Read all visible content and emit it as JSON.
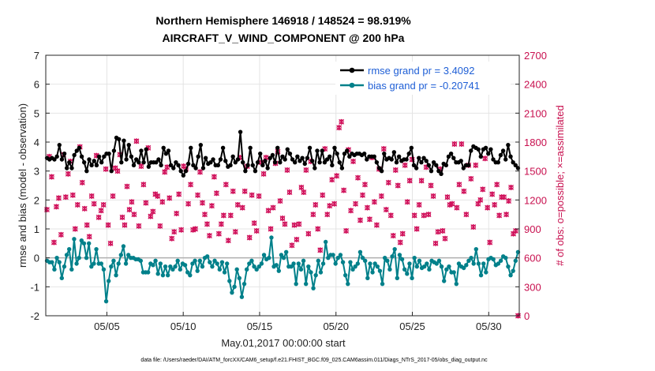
{
  "chart_data": {
    "type": "line",
    "title": "Northern Hemisphere 146918 / 148524 = 98.919%",
    "subtitle": "AIRCRAFT_V_WIND_COMPONENT @ 200 hPa",
    "xlabel": "May.01,2017 00:00:00 start",
    "ylabel": "rmse and bias (model - observation)",
    "ylabel_right": "# of obs: o=possible; ×=assimilated",
    "footer": "data file: /Users/raeder/DAI/ATM_forcXX/CAM6_setup/f.e21.FHIST_BGC.f09_025.CAM6assim.011/Diags_NTrS_2017-05/obs_diag_output.nc",
    "xlim": [
      1,
      32
    ],
    "ylim": [
      -2,
      7
    ],
    "ylim_right": [
      0,
      2700
    ],
    "grid": true,
    "legend_position": "top-right",
    "x_ticks": [
      5,
      10,
      15,
      20,
      25,
      30
    ],
    "x_tick_labels": [
      "05/05",
      "05/10",
      "05/15",
      "05/20",
      "05/25",
      "05/30"
    ],
    "y_ticks": [
      "-2",
      "-1",
      "0",
      "1",
      "2",
      "3",
      "4",
      "5",
      "6",
      "7"
    ],
    "y_ticks_right": [
      "0",
      "300",
      "600",
      "900",
      "1200",
      "1500",
      "1800",
      "2100",
      "2400",
      "2700"
    ],
    "legend": [
      {
        "label": "rmse grand pr = 3.4092",
        "color": "#000000"
      },
      {
        "label": "bias grand pr = -0.20741",
        "color": "#00808a"
      }
    ],
    "series": [
      {
        "name": "rmse",
        "color": "#000000",
        "values": [
          3.45,
          3.4,
          3.45,
          3.4,
          3.5,
          3.9,
          3.4,
          3.6,
          3.1,
          3.3,
          3.1,
          3.55,
          3.7,
          3.8,
          3.5,
          3.3,
          3.0,
          3.4,
          3.2,
          3.35,
          3.2,
          3.5,
          3.3,
          3.5,
          3.6,
          3.6,
          3.0,
          3.7,
          4.15,
          4.1,
          3.3,
          4.05,
          3.4,
          3.9,
          3.5,
          3.2,
          3.4,
          3.3,
          3.7,
          3.3,
          3.75,
          3.15,
          3.3,
          3.3,
          3.3,
          3.4,
          3.2,
          3.8,
          3.6,
          3.7,
          3.2,
          3.1,
          3.3,
          3.2,
          3.0,
          2.85,
          3.0,
          3.25,
          3.8,
          3.2,
          3.1,
          3.5,
          3.9,
          3.1,
          3.45,
          3.25,
          3.3,
          3.4,
          3.2,
          3.2,
          3.4,
          3.8,
          3.35,
          3.15,
          3.2,
          3.5,
          3.3,
          3.4,
          4.35,
          3.3,
          3.0,
          3.2,
          3.8,
          3.2,
          3.0,
          3.3,
          3.6,
          3.2,
          3.35,
          3.1,
          3.45,
          3.55,
          3.3,
          3.8,
          3.3,
          3.5,
          3.4,
          3.75,
          3.6,
          3.4,
          3.3,
          3.5,
          3.35,
          3.45,
          3.25,
          3.45,
          3.8,
          3.35,
          3.1,
          3.7,
          3.3,
          3.7,
          3.3,
          3.4,
          3.5,
          3.2,
          3.8,
          3.6,
          3.3,
          3.1,
          3.6,
          3.7,
          3.5,
          3.6,
          3.55,
          3.6,
          3.6,
          3.55,
          3.6,
          3.4,
          3.5,
          3.5,
          3.5,
          3.3,
          3.1,
          3.0,
          3.6,
          3.4,
          3.45,
          3.4,
          3.65,
          3.3,
          3.5,
          3.35,
          3.4,
          3.4,
          3.6,
          3.8,
          3.2,
          3.1,
          3.45,
          3.3,
          3.45,
          3.35,
          3.2,
          3.0,
          3.3,
          3.2,
          3.0,
          2.9,
          3.25,
          3.2,
          3.5,
          3.6,
          3.45,
          3.3,
          3.3,
          3.35,
          3.1,
          3.2,
          3.2,
          3.7,
          3.85,
          3.8,
          3.75,
          3.5,
          3.75,
          3.8,
          3.6,
          3.75,
          3.4,
          3.3,
          3.3,
          3.55,
          3.7,
          3.4,
          3.9,
          3.5,
          3.3,
          3.2,
          3.1
        ]
      },
      {
        "name": "bias",
        "color": "#00808a",
        "values": [
          -0.1,
          -0.15,
          -0.15,
          -0.4,
          0.0,
          -0.15,
          -0.7,
          -0.3,
          0.1,
          0.3,
          -0.4,
          0.65,
          -0.2,
          0.0,
          0.6,
          0.5,
          0.0,
          0.5,
          -0.3,
          -0.2,
          0.3,
          -0.2,
          -0.2,
          -0.4,
          -1.5,
          -0.8,
          -0.3,
          -0.1,
          -0.6,
          -0.2,
          0.1,
          0.4,
          -0.2,
          0.1,
          0.0,
          0.0,
          -0.05,
          -0.05,
          -0.1,
          -0.5,
          -0.5,
          -0.5,
          -0.2,
          -0.25,
          -0.1,
          -0.55,
          -0.2,
          -0.6,
          -0.3,
          -0.6,
          -0.3,
          -0.4,
          -0.3,
          -0.1,
          -0.4,
          -0.2,
          -0.25,
          -0.5,
          -0.6,
          -0.2,
          -0.1,
          -0.45,
          -0.1,
          -0.3,
          0.0,
          0.05,
          -0.15,
          -0.3,
          -0.1,
          -0.2,
          -0.4,
          -0.15,
          -0.5,
          -0.2,
          -0.8,
          -1.2,
          -1.0,
          -0.4,
          -0.7,
          -1.35,
          -0.9,
          -0.4,
          -0.2,
          -0.1,
          -0.3,
          -0.4,
          -0.3,
          -0.2,
          0.1,
          -0.05,
          0.0,
          0.7,
          -0.3,
          -0.25,
          -0.45,
          0.1,
          0.0,
          0.2,
          -0.3,
          -0.3,
          -0.2,
          -0.9,
          -0.2,
          -0.4,
          -0.1,
          -0.9,
          -0.3,
          -0.5,
          -1.05,
          -0.6,
          -0.1,
          -0.5,
          -0.2,
          0.55,
          0.0,
          0.1,
          0.1,
          -0.2,
          0.0,
          0.1,
          -0.15,
          -0.6,
          -0.9,
          -0.15,
          -0.4,
          -0.3,
          -0.2,
          0.2,
          0.0,
          -0.1,
          -0.7,
          -0.2,
          -0.5,
          -0.2,
          -0.3,
          -0.45,
          -0.9,
          0.0,
          -0.1,
          -0.4,
          0.05,
          0.3,
          -0.7,
          0.1,
          -0.05,
          -0.4,
          -0.55,
          -0.2,
          -0.7,
          0.0,
          -0.3,
          -0.1,
          -0.35,
          -0.3,
          -0.2,
          -0.4,
          -0.1,
          -0.15,
          -0.2,
          -0.1,
          -0.3,
          -0.8,
          -0.4,
          -0.3,
          -0.5,
          -0.5,
          -0.9,
          -0.2,
          -0.3,
          -0.35,
          -0.25,
          -0.1,
          0.0,
          -0.2,
          0.3,
          -0.2,
          -0.6,
          -0.2,
          -0.5,
          -0.05,
          0.0,
          -0.05,
          -0.25,
          -0.2,
          -0.1,
          0.05,
          0.0,
          -0.3,
          -0.6,
          -0.45,
          -0.1,
          0.2
        ]
      },
      {
        "name": "obs_possible",
        "color": "#d0105a",
        "marker": "o",
        "values": [
          1100,
          1650,
          1440,
          760,
          1130,
          1220,
          840,
          1670,
          1230,
          1470,
          1600,
          1250,
          900,
          1150,
          1750,
          1380,
          1110,
          940,
          820,
          1240,
          1160,
          1660,
          1020,
          1090,
          1150,
          1520,
          940,
          750,
          1240,
          1530,
          1500,
          1670,
          1020,
          940,
          1340,
          1100,
          1180,
          1050,
          1810,
          930,
          1550,
          1360,
          1170,
          1740,
          1030,
          1080,
          1260,
          1240,
          930,
          1180,
          1490,
          1540,
          1220,
          800,
          870,
          1060,
          1260,
          890,
          1550,
          1520,
          1160,
          1360,
          890,
          900,
          1250,
          1490,
          1170,
          1050,
          950,
          830,
          1140,
          1440,
          1270,
          850,
          950,
          1040,
          1360,
          780,
          1040,
          1290,
          870,
          1150,
          1640,
          1120,
          1290,
          1550,
          810,
          1250,
          960,
          880,
          1240,
          1590,
          1470,
          1640,
          1090,
          900,
          1120,
          1580,
          1700,
          1190,
          1010,
          950,
          1510,
          1280,
          730,
          940,
          790,
          950,
          1330,
          1280,
          1510,
          850,
          1600,
          1050,
          1150,
          900,
          680,
          1250,
          1730,
          1050,
          1140,
          1410,
          1160,
          1450,
          1950,
          2010,
          1300,
          880,
          1720,
          1090,
          1600,
          1160,
          1430,
          990,
          1250,
          1360,
          1120,
          1000,
          1640,
          1180,
          940,
          1520,
          1240,
          1730,
          1100,
          1380,
          1040,
          830,
          1510,
          1350,
          760,
          850,
          1560,
          1180,
          1400,
          1620,
          1040,
          900,
          1150,
          1400,
          1040,
          1540,
          1050,
          1350,
          1240,
          750,
          870,
          1520,
          880,
          800,
          1230,
          1150,
          1160,
          1780,
          1120,
          1360,
          1780,
          1290,
          1050,
          1560,
          1420,
          920,
          1560,
          1160,
          1200,
          1310,
          1630,
          1120,
          760,
          1260,
          1150,
          1360,
          1040,
          1230,
          1230,
          1050,
          1190,
          1330,
          850,
          880,
          0
        ]
      }
    ]
  }
}
